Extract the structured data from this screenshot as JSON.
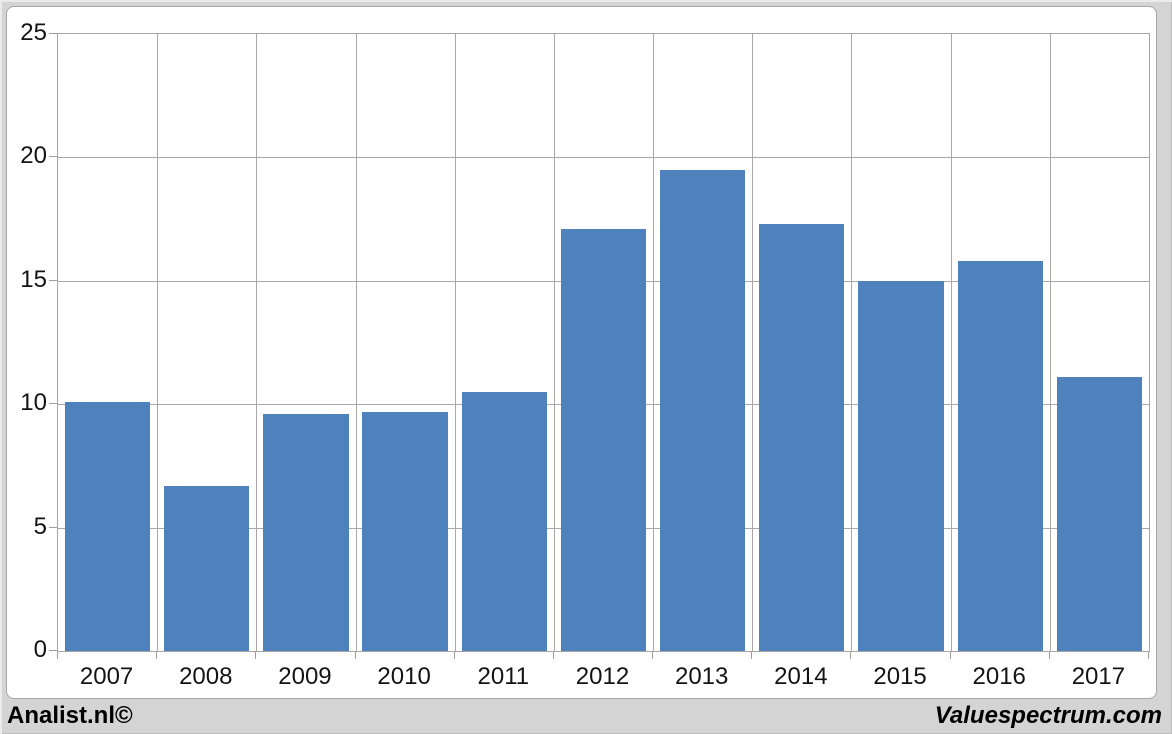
{
  "chart_data": {
    "type": "bar",
    "title": "",
    "xlabel": "",
    "ylabel": "",
    "categories": [
      "2007",
      "2008",
      "2009",
      "2010",
      "2011",
      "2012",
      "2013",
      "2014",
      "2015",
      "2016",
      "2017"
    ],
    "values": [
      10.1,
      6.7,
      9.6,
      9.7,
      10.5,
      17.1,
      19.5,
      17.3,
      15.0,
      15.8,
      11.1
    ],
    "ylim": [
      0,
      25
    ],
    "yticks": [
      25,
      20,
      15,
      10,
      5,
      0
    ],
    "grid": true,
    "legend_position": "none",
    "bar_color": "#4f81bd"
  },
  "footer": {
    "left_text": "Analist.nl©",
    "right_text": "Valuespectrum.com"
  },
  "colors": {
    "page_background": "#d4d4d4",
    "plot_background": "#ffffff",
    "grid_line": "#a9a9a9",
    "axis_line": "#a6a6a6",
    "bar": "#4f81bd",
    "text": "#141414"
  }
}
